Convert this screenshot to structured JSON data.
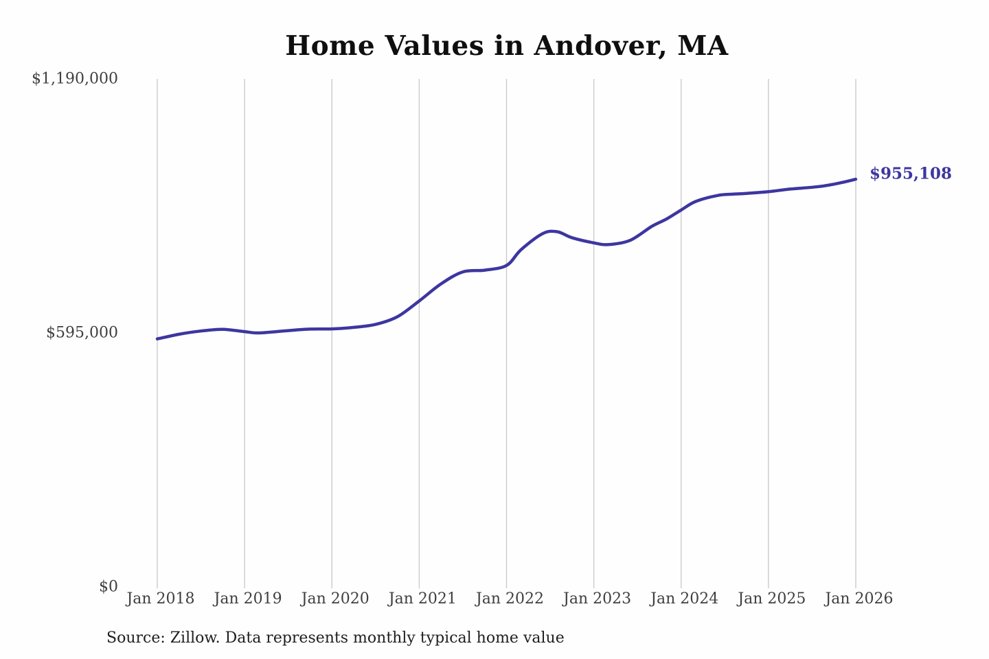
{
  "page": {
    "background": "#fefefe"
  },
  "chart_data": {
    "type": "line",
    "title": "Home Values in Andover, MA",
    "xlabel": "",
    "ylabel": "",
    "ylim": [
      0,
      1190000
    ],
    "x_range_years": [
      "2018-01",
      "2026-01"
    ],
    "grid": "vertical-only",
    "legend": "none",
    "grid_color": "#cbcbcb",
    "line_color": "#3d36a0",
    "end_label": "$955,108",
    "end_label_color": "#3d36a0",
    "axis_text_color": "#3f3f3f",
    "title_color": "#0f0f0f",
    "y_ticks": [
      {
        "label": "$0",
        "value": 0
      },
      {
        "label": "$595,000",
        "value": 595000
      },
      {
        "label": "$1,190,000",
        "value": 1190000
      }
    ],
    "x_ticks": [
      {
        "label": "Jan 2018",
        "date": "2018-01"
      },
      {
        "label": "Jan 2019",
        "date": "2019-01"
      },
      {
        "label": "Jan 2020",
        "date": "2020-01"
      },
      {
        "label": "Jan 2021",
        "date": "2021-01"
      },
      {
        "label": "Jan 2022",
        "date": "2022-01"
      },
      {
        "label": "Jan 2023",
        "date": "2023-01"
      },
      {
        "label": "Jan 2024",
        "date": "2024-01"
      },
      {
        "label": "Jan 2025",
        "date": "2025-01"
      },
      {
        "label": "Jan 2026",
        "date": "2026-01"
      }
    ],
    "series": [
      {
        "name": "Typical home value",
        "points": [
          {
            "date": "2018-01",
            "value": 581000
          },
          {
            "date": "2018-04",
            "value": 592000
          },
          {
            "date": "2018-07",
            "value": 599500
          },
          {
            "date": "2018-10",
            "value": 603500
          },
          {
            "date": "2019-01",
            "value": 598000
          },
          {
            "date": "2019-03",
            "value": 595000
          },
          {
            "date": "2019-07",
            "value": 600500
          },
          {
            "date": "2019-10",
            "value": 604000
          },
          {
            "date": "2020-01",
            "value": 604500
          },
          {
            "date": "2020-04",
            "value": 608000
          },
          {
            "date": "2020-07",
            "value": 615000
          },
          {
            "date": "2020-10",
            "value": 633000
          },
          {
            "date": "2021-01",
            "value": 670000
          },
          {
            "date": "2021-04",
            "value": 710000
          },
          {
            "date": "2021-07",
            "value": 738000
          },
          {
            "date": "2021-10",
            "value": 742000
          },
          {
            "date": "2022-01",
            "value": 753000
          },
          {
            "date": "2022-03",
            "value": 790000
          },
          {
            "date": "2022-06",
            "value": 828000
          },
          {
            "date": "2022-08",
            "value": 832000
          },
          {
            "date": "2022-10",
            "value": 818000
          },
          {
            "date": "2023-01",
            "value": 806000
          },
          {
            "date": "2023-03",
            "value": 802000
          },
          {
            "date": "2023-06",
            "value": 812000
          },
          {
            "date": "2023-09",
            "value": 845000
          },
          {
            "date": "2023-11",
            "value": 862000
          },
          {
            "date": "2024-01",
            "value": 883000
          },
          {
            "date": "2024-03",
            "value": 903000
          },
          {
            "date": "2024-06",
            "value": 917000
          },
          {
            "date": "2024-08",
            "value": 920000
          },
          {
            "date": "2024-10",
            "value": 922000
          },
          {
            "date": "2025-01",
            "value": 926000
          },
          {
            "date": "2025-04",
            "value": 932000
          },
          {
            "date": "2025-08",
            "value": 938000
          },
          {
            "date": "2025-11",
            "value": 947000
          },
          {
            "date": "2026-01",
            "value": 955108
          }
        ]
      }
    ],
    "source_note": "Source: Zillow. Data represents monthly typical home value"
  }
}
